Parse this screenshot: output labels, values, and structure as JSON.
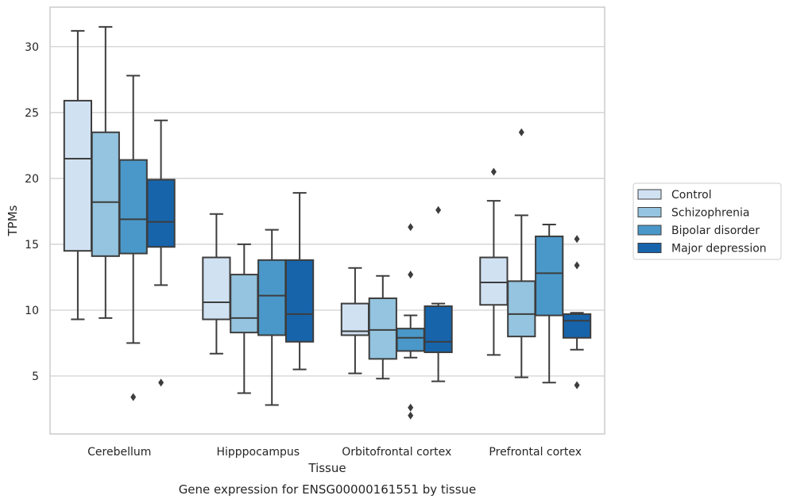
{
  "chart_data": {
    "type": "box",
    "title": "",
    "caption": "Gene expression for ENSG00000161551 by tissue",
    "xlabel": "Tissue",
    "ylabel": "TPMs",
    "ylim": [
      0.6,
      33.0
    ],
    "yticks": [
      5,
      10,
      15,
      20,
      25,
      30
    ],
    "grid": "horizontal",
    "legend_position": "right",
    "categories": [
      "Cerebellum",
      "Hipppocampus",
      "Orbitofrontal cortex",
      "Prefrontal cortex"
    ],
    "series": [
      {
        "name": "Control",
        "color": "#d0e1f2",
        "boxes": [
          {
            "whisker_low": 9.3,
            "q1": 14.5,
            "median": 21.5,
            "q3": 25.9,
            "whisker_high": 31.2,
            "outliers": []
          },
          {
            "whisker_low": 6.7,
            "q1": 9.3,
            "median": 10.6,
            "q3": 14.0,
            "whisker_high": 17.3,
            "outliers": []
          },
          {
            "whisker_low": 5.2,
            "q1": 8.1,
            "median": 8.4,
            "q3": 10.5,
            "whisker_high": 13.2,
            "outliers": []
          },
          {
            "whisker_low": 6.6,
            "q1": 10.4,
            "median": 12.1,
            "q3": 14.0,
            "whisker_high": 18.3,
            "outliers": [
              20.5
            ]
          }
        ]
      },
      {
        "name": "Schizophrenia",
        "color": "#94c4df",
        "boxes": [
          {
            "whisker_low": 9.4,
            "q1": 14.1,
            "median": 18.2,
            "q3": 23.5,
            "whisker_high": 31.5,
            "outliers": []
          },
          {
            "whisker_low": 3.7,
            "q1": 8.3,
            "median": 9.4,
            "q3": 12.7,
            "whisker_high": 15.0,
            "outliers": []
          },
          {
            "whisker_low": 4.8,
            "q1": 6.3,
            "median": 8.5,
            "q3": 10.9,
            "whisker_high": 12.6,
            "outliers": []
          },
          {
            "whisker_low": 4.9,
            "q1": 8.0,
            "median": 9.7,
            "q3": 12.2,
            "whisker_high": 17.2,
            "outliers": [
              23.5
            ]
          }
        ]
      },
      {
        "name": "Bipolar disorder",
        "color": "#4a98c9",
        "boxes": [
          {
            "whisker_low": 7.5,
            "q1": 14.3,
            "median": 16.9,
            "q3": 21.4,
            "whisker_high": 27.8,
            "outliers": [
              3.4
            ]
          },
          {
            "whisker_low": 2.8,
            "q1": 8.1,
            "median": 11.1,
            "q3": 13.8,
            "whisker_high": 16.1,
            "outliers": []
          },
          {
            "whisker_low": 6.4,
            "q1": 6.9,
            "median": 7.9,
            "q3": 8.6,
            "whisker_high": 9.6,
            "outliers": [
              16.3,
              12.7,
              2.6,
              2.0
            ]
          },
          {
            "whisker_low": 4.5,
            "q1": 9.6,
            "median": 12.8,
            "q3": 15.6,
            "whisker_high": 16.5,
            "outliers": []
          }
        ]
      },
      {
        "name": "Major depression",
        "color": "#1764ab",
        "boxes": [
          {
            "whisker_low": 11.9,
            "q1": 14.8,
            "median": 16.7,
            "q3": 19.9,
            "whisker_high": 24.4,
            "outliers": [
              4.5
            ]
          },
          {
            "whisker_low": 5.5,
            "q1": 7.6,
            "median": 9.7,
            "q3": 13.8,
            "whisker_high": 18.9,
            "outliers": []
          },
          {
            "whisker_low": 4.6,
            "q1": 6.8,
            "median": 7.6,
            "q3": 10.3,
            "whisker_high": 10.5,
            "outliers": [
              17.6
            ]
          },
          {
            "whisker_low": 7.0,
            "q1": 7.9,
            "median": 9.2,
            "q3": 9.7,
            "whisker_high": 9.8,
            "outliers": [
              15.4,
              13.4,
              4.3
            ]
          }
        ]
      }
    ]
  }
}
